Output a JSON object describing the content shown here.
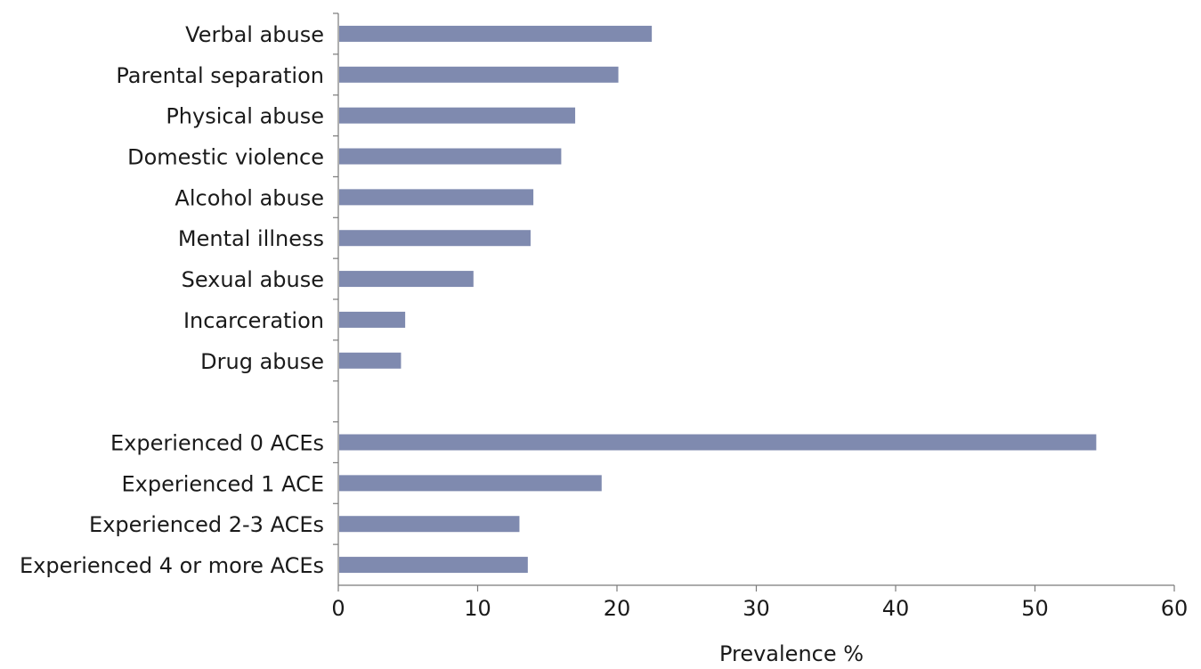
{
  "chart_data": {
    "type": "bar",
    "orientation": "horizontal",
    "title": "",
    "xlabel": "Prevalence %",
    "ylabel": "",
    "xlim": [
      0,
      60
    ],
    "x_ticks": [
      0,
      10,
      20,
      30,
      40,
      50,
      60
    ],
    "grid": false,
    "legend": "none",
    "bar_color": "#7f8aaf",
    "categories": [
      "Verbal abuse",
      "Parental separation",
      "Physical abuse",
      "Domestic violence",
      "Alcohol abuse",
      "Mental illness",
      "Sexual abuse",
      "Incarceration",
      "Drug abuse",
      "",
      "Experienced 0 ACEs",
      "Experienced 1 ACE",
      "Experienced 2-3 ACEs",
      "Experienced 4 or more ACEs"
    ],
    "values": [
      22.5,
      20.1,
      17.0,
      16.0,
      14.0,
      13.8,
      9.7,
      4.8,
      4.5,
      null,
      54.4,
      18.9,
      13.0,
      13.6
    ]
  }
}
